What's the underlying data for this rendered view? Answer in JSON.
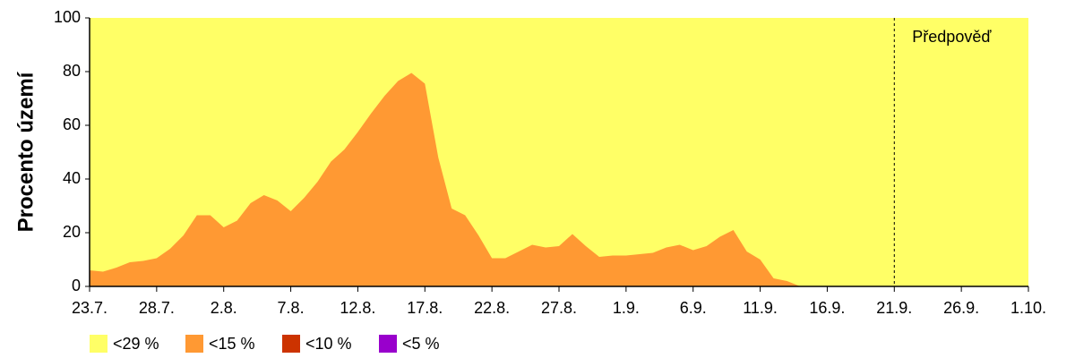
{
  "chart_data": {
    "type": "area",
    "ylabel": "Procento území",
    "categories": [
      "23.7.",
      null,
      null,
      null,
      null,
      "28.7.",
      null,
      null,
      null,
      null,
      "2.8.",
      null,
      null,
      null,
      null,
      "7.8.",
      null,
      null,
      null,
      null,
      "12.8.",
      null,
      null,
      null,
      null,
      "17.8.",
      null,
      null,
      null,
      null,
      "22.8.",
      null,
      null,
      null,
      null,
      "27.8.",
      null,
      null,
      null,
      null,
      "1.9.",
      null,
      null,
      null,
      null,
      "6.9.",
      null,
      null,
      null,
      null,
      "11.9.",
      null,
      null,
      null,
      null,
      "16.9.",
      null,
      null,
      null,
      null,
      "21.9.",
      null,
      null,
      null,
      null,
      "26.9.",
      null,
      null,
      null,
      null,
      "1.10."
    ],
    "series": [
      {
        "name": "<29 %",
        "color": "#ffff66",
        "values": [
          100,
          100,
          100,
          100,
          100,
          100,
          100,
          100,
          100,
          100,
          100,
          100,
          100,
          100,
          100,
          100,
          100,
          100,
          100,
          100,
          100,
          100,
          100,
          100,
          100,
          100,
          100,
          100,
          100,
          100,
          100,
          100,
          100,
          100,
          100,
          100,
          100,
          100,
          100,
          100,
          100,
          100,
          100,
          100,
          100,
          100,
          100,
          100,
          100,
          100,
          100,
          100,
          100,
          100,
          100,
          100,
          100,
          100,
          100,
          100,
          100,
          100,
          100,
          100,
          100,
          100,
          100,
          100,
          100,
          100,
          100
        ]
      },
      {
        "name": "<15 %",
        "color": "#ff9933",
        "values": [
          6,
          5.5,
          7,
          9,
          9.5,
          10.5,
          14,
          19,
          26.5,
          26.5,
          22,
          24.5,
          31,
          34,
          32,
          28,
          33,
          39,
          46.5,
          51,
          57.5,
          64.5,
          71,
          76.5,
          79.5,
          75.5,
          48,
          29,
          26.5,
          19,
          10.5,
          10.5,
          13,
          15.5,
          14.5,
          15,
          19.5,
          15,
          11,
          11.5,
          11.5,
          12,
          12.5,
          14.5,
          15.5,
          13.5,
          15,
          18.5,
          21,
          13,
          10,
          3,
          2,
          0,
          0,
          0,
          0,
          0,
          0,
          0,
          0,
          0,
          0,
          0,
          0,
          0,
          0,
          0,
          0,
          0,
          0
        ]
      },
      {
        "name": "<10 %",
        "color": "#cc3300",
        "values": [
          0,
          0,
          0,
          0,
          0,
          0,
          0,
          0,
          0,
          0,
          0,
          0,
          0,
          0,
          0,
          0,
          0,
          0,
          0,
          0,
          0,
          0,
          0,
          0,
          0,
          0,
          0,
          0,
          0,
          0,
          0,
          0,
          0,
          0,
          0,
          0,
          0,
          0,
          0,
          0,
          0,
          0,
          0,
          0,
          0,
          0,
          0,
          0,
          0,
          0,
          0,
          0,
          0,
          0,
          0,
          0,
          0,
          0,
          0,
          0,
          0,
          0,
          0,
          0,
          0,
          0,
          0,
          0,
          0,
          0,
          0
        ]
      },
      {
        "name": "<5 %",
        "color": "#9900cc",
        "values": [
          0,
          0,
          0,
          0,
          0,
          0,
          0,
          0,
          0,
          0,
          0,
          0,
          0,
          0,
          0,
          0,
          0,
          0,
          0,
          0,
          0,
          0,
          0,
          0,
          0,
          0,
          0,
          0,
          0,
          0,
          0,
          0,
          0,
          0,
          0,
          0,
          0,
          0,
          0,
          0,
          0,
          0,
          0,
          0,
          0,
          0,
          0,
          0,
          0,
          0,
          0,
          0,
          0,
          0,
          0,
          0,
          0,
          0,
          0,
          0,
          0,
          0,
          0,
          0,
          0,
          0,
          0,
          0,
          0,
          0,
          0
        ]
      }
    ],
    "annotations": [
      {
        "text": "Předpověď",
        "x": "21.9."
      }
    ],
    "ylim": [
      0,
      100
    ],
    "yticks": [
      0,
      20,
      40,
      60,
      80,
      100
    ]
  }
}
